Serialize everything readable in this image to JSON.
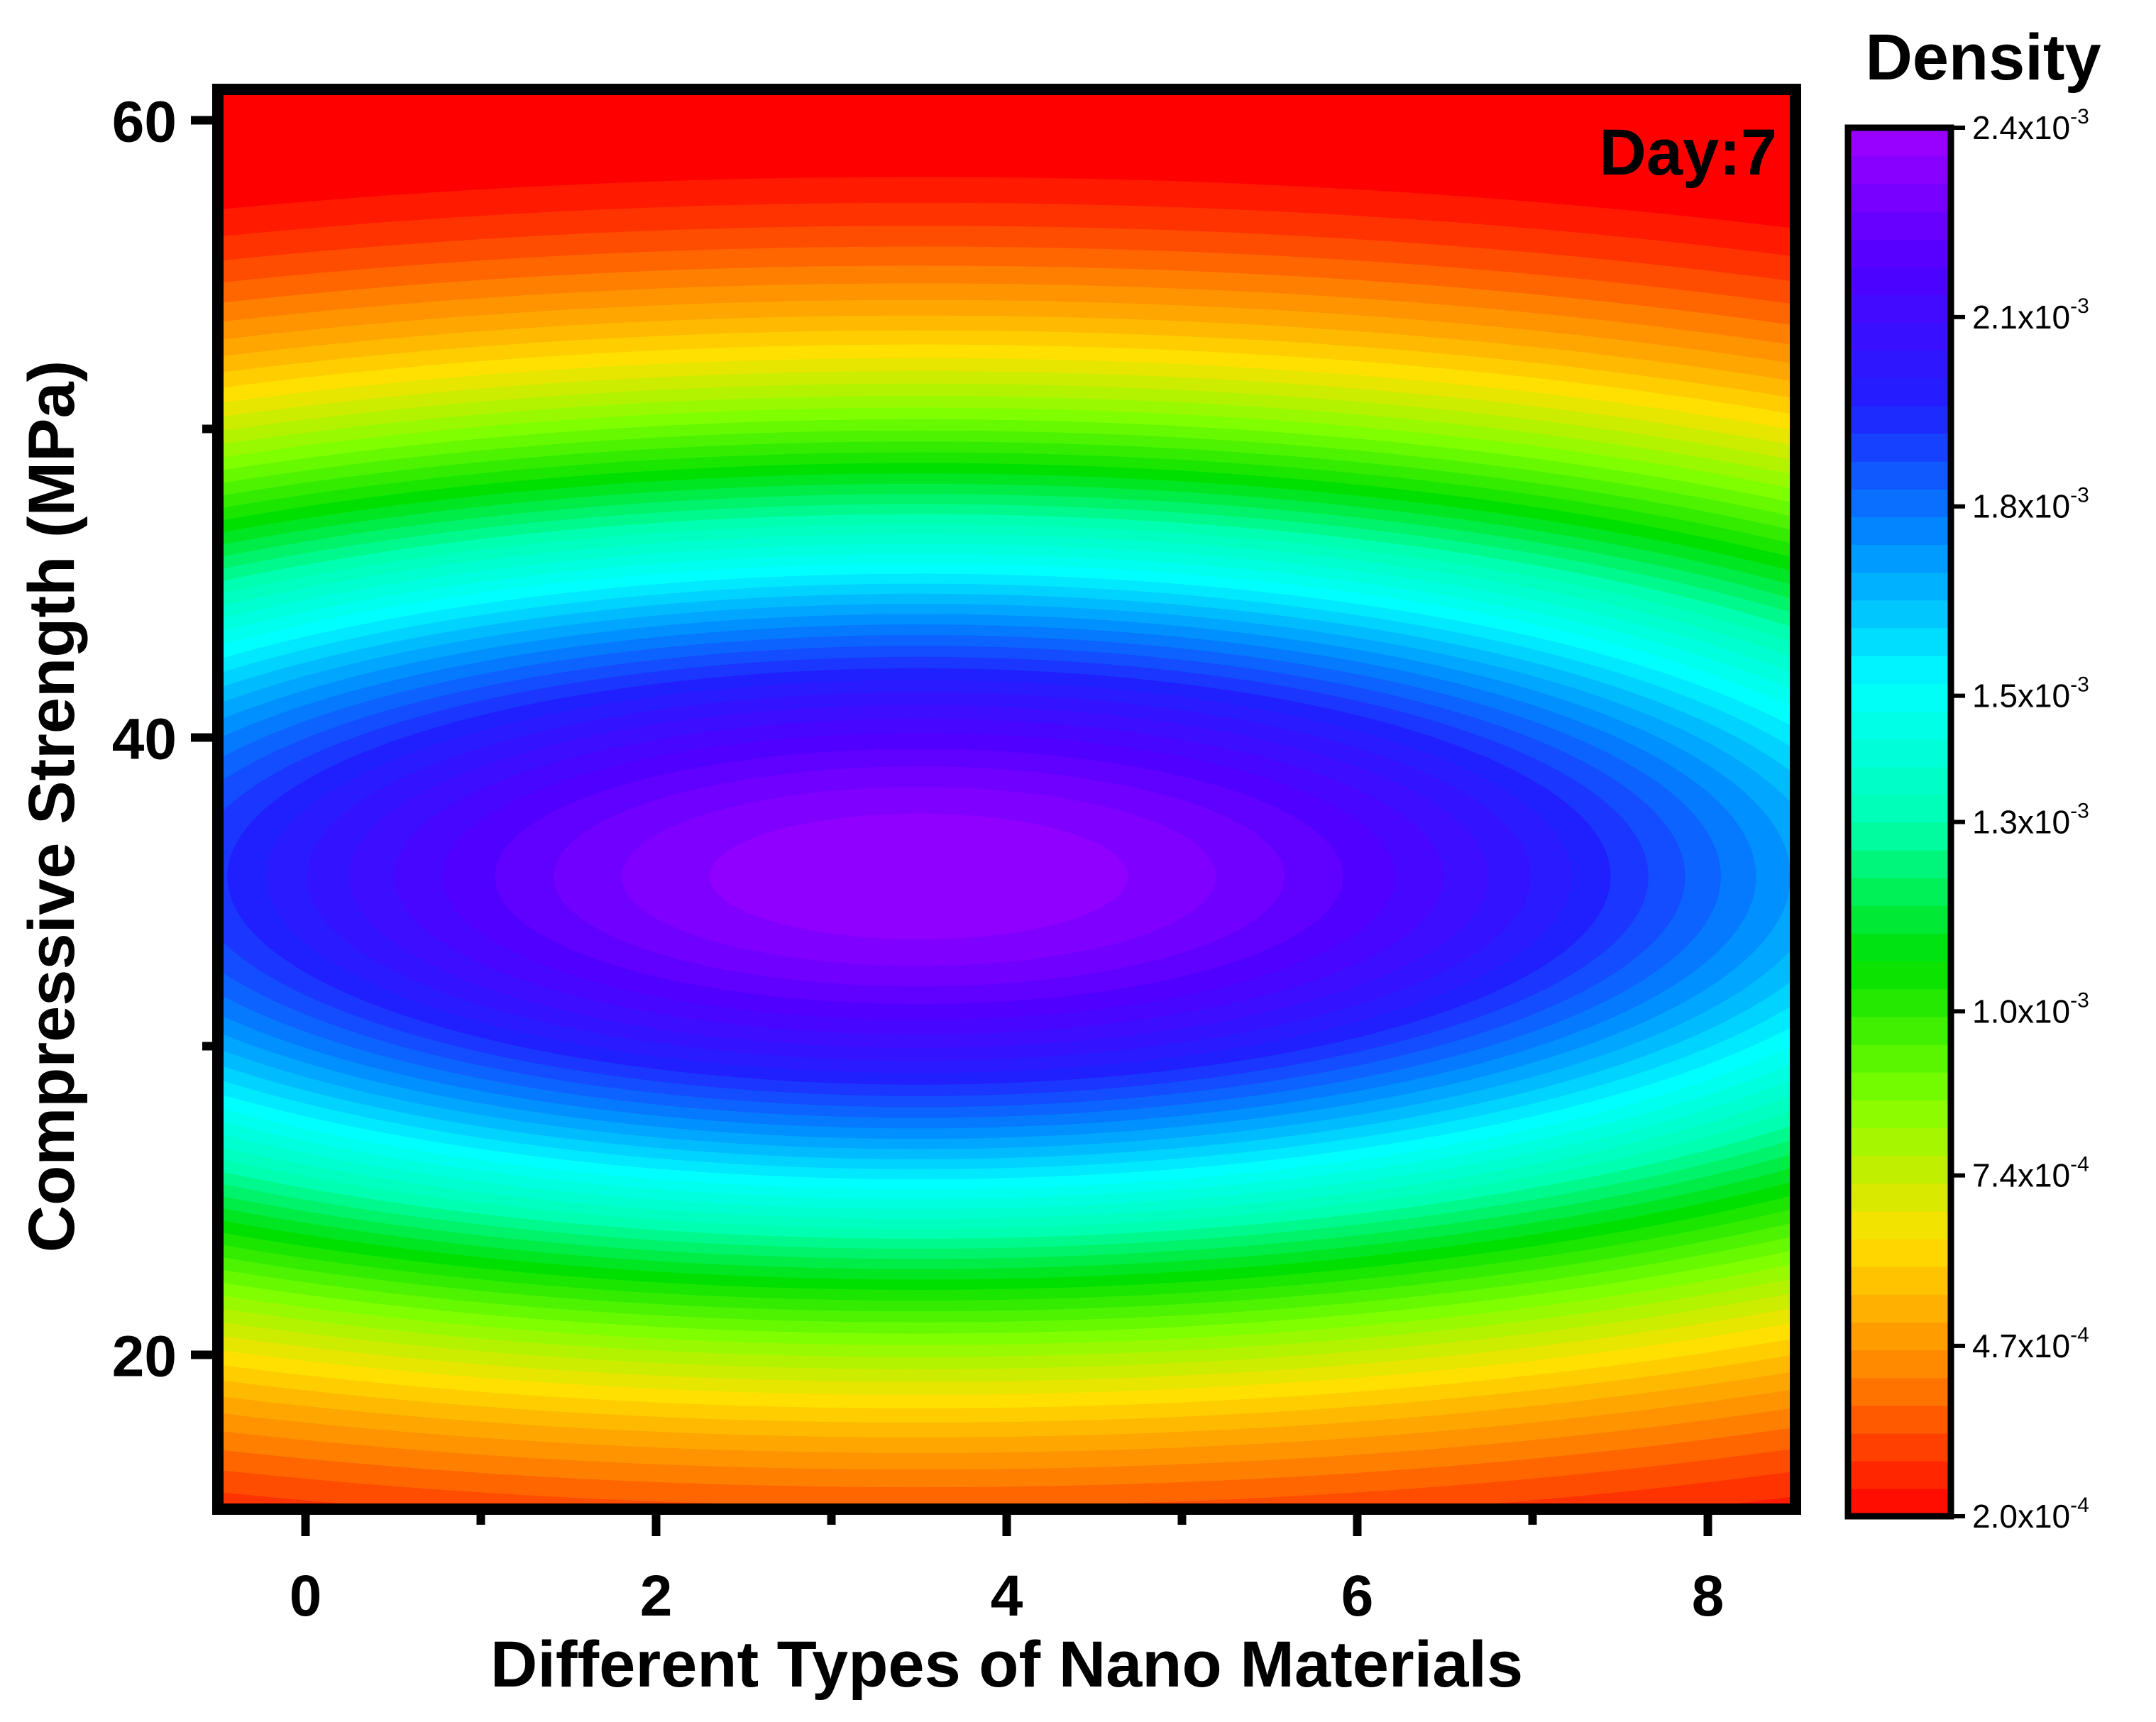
{
  "chart_data": {
    "type": "heatmap",
    "subtype": "filled-contour",
    "title": "",
    "annotation": "Day:7",
    "xlabel": "Different Types of Nano Materials",
    "ylabel": "Compressive Strength (MPa)",
    "xlim": [
      -0.5,
      8.5
    ],
    "ylim": [
      15,
      61
    ],
    "x_ticks": [
      0,
      2,
      4,
      6,
      8
    ],
    "x_tick_labels": [
      "0",
      "2",
      "4",
      "6",
      "8"
    ],
    "x_minor_ticks": [
      1,
      3,
      5,
      7
    ],
    "y_ticks": [
      20,
      40,
      60
    ],
    "y_tick_labels": [
      "20",
      "40",
      "60"
    ],
    "y_minor_ticks": [
      30,
      50
    ],
    "density_model": {
      "peak": {
        "x": 3.5,
        "y": 35.5,
        "value": 0.0024
      },
      "x_spread": 6.2,
      "y_spread": 10.6,
      "min_value": 0.0002
    },
    "contour_levels": 50,
    "colorbar": {
      "title": "Density",
      "min": 0.0002,
      "max": 0.0024,
      "ticks": [
        {
          "value": 0.0002,
          "mantissa": "2.0x10",
          "exponent": "-4"
        },
        {
          "value": 0.00047,
          "mantissa": "4.7x10",
          "exponent": "-4"
        },
        {
          "value": 0.00074,
          "mantissa": "7.4x10",
          "exponent": "-4"
        },
        {
          "value": 0.001,
          "mantissa": "1.0x10",
          "exponent": "-3"
        },
        {
          "value": 0.0013,
          "mantissa": "1.3x10",
          "exponent": "-3"
        },
        {
          "value": 0.0015,
          "mantissa": "1.5x10",
          "exponent": "-3"
        },
        {
          "value": 0.0018,
          "mantissa": "1.8x10",
          "exponent": "-3"
        },
        {
          "value": 0.0021,
          "mantissa": "2.1x10",
          "exponent": "-3"
        },
        {
          "value": 0.0024,
          "mantissa": "2.4x10",
          "exponent": "-3"
        }
      ],
      "colormap": [
        "#ff0000",
        "#ff8000",
        "#ffe000",
        "#80ff00",
        "#00e000",
        "#00ffb0",
        "#00ffff",
        "#0090ff",
        "#2020ff",
        "#5000ff",
        "#a000ff"
      ]
    }
  }
}
